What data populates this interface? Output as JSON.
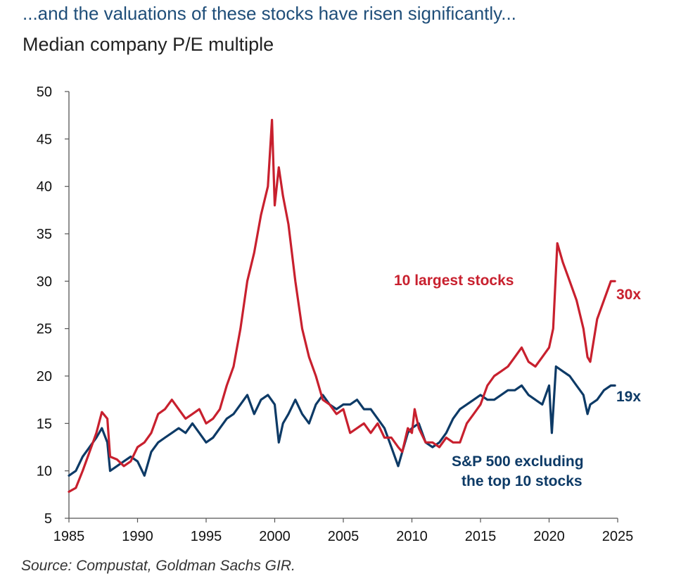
{
  "header": {
    "title": "...and the valuations of these stocks have risen significantly...",
    "subtitle": "Median company P/E multiple"
  },
  "footer": {
    "source": "Source: Compustat, Goldman Sachs GIR."
  },
  "colors": {
    "top10": "#c8202e",
    "rest": "#0d3a66",
    "axis": "#555555"
  },
  "chart_data": {
    "type": "line",
    "title": "Median company P/E multiple",
    "xlabel": "",
    "ylabel": "",
    "xlim": [
      1985,
      2025
    ],
    "ylim": [
      5,
      50
    ],
    "xticks": [
      1985,
      1990,
      1995,
      2000,
      2005,
      2010,
      2015,
      2020,
      2025
    ],
    "yticks": [
      5,
      10,
      15,
      20,
      25,
      30,
      35,
      40,
      45,
      50
    ],
    "grid": false,
    "legend": "none",
    "annotations": [
      {
        "text": "10 largest stocks",
        "series": "top10"
      },
      {
        "text": "30x",
        "series": "top10"
      },
      {
        "text": "19x",
        "series": "rest"
      },
      {
        "text": "S&P 500 excluding",
        "series": "rest"
      },
      {
        "text": "the top 10 stocks",
        "series": "rest"
      }
    ],
    "series": [
      {
        "id": "top10",
        "x": [
          1985.0,
          1985.5,
          1986.0,
          1986.5,
          1987.0,
          1987.4,
          1987.8,
          1988.0,
          1988.5,
          1989.0,
          1989.5,
          1990.0,
          1990.5,
          1991.0,
          1991.5,
          1992.0,
          1992.5,
          1993.0,
          1993.5,
          1994.0,
          1994.5,
          1995.0,
          1995.5,
          1996.0,
          1996.5,
          1997.0,
          1997.5,
          1998.0,
          1998.5,
          1999.0,
          1999.5,
          1999.8,
          2000.0,
          2000.3,
          2000.6,
          2001.0,
          2001.5,
          2002.0,
          2002.5,
          2003.0,
          2003.5,
          2004.0,
          2004.5,
          2005.0,
          2005.5,
          2006.0,
          2006.5,
          2007.0,
          2007.5,
          2008.0,
          2008.5,
          2009.0,
          2009.3,
          2009.7,
          2010.0,
          2010.2,
          2010.5,
          2011.0,
          2011.5,
          2012.0,
          2012.5,
          2013.0,
          2013.5,
          2014.0,
          2014.5,
          2015.0,
          2015.5,
          2016.0,
          2016.5,
          2017.0,
          2017.5,
          2018.0,
          2018.5,
          2019.0,
          2019.5,
          2020.0,
          2020.3,
          2020.6,
          2021.0,
          2021.5,
          2022.0,
          2022.5,
          2022.8,
          2023.0,
          2023.5,
          2024.0,
          2024.5,
          2024.8
        ],
        "y": [
          7.8,
          8.2,
          10.0,
          12.0,
          14.0,
          16.2,
          15.5,
          11.5,
          11.2,
          10.5,
          11.0,
          12.5,
          13.0,
          14.0,
          16.0,
          16.5,
          17.5,
          16.5,
          15.5,
          16.0,
          16.5,
          15.0,
          15.5,
          16.5,
          19.0,
          21.0,
          25.0,
          30.0,
          33.0,
          37.0,
          40.0,
          47.0,
          38.0,
          42.0,
          39.0,
          36.0,
          30.0,
          25.0,
          22.0,
          20.0,
          17.5,
          17.0,
          16.0,
          16.5,
          14.0,
          14.5,
          15.0,
          14.0,
          15.0,
          13.5,
          13.5,
          12.5,
          12.0,
          14.5,
          14.0,
          16.5,
          14.5,
          13.0,
          13.0,
          12.5,
          13.5,
          13.0,
          13.0,
          15.0,
          16.0,
          17.0,
          19.0,
          20.0,
          20.5,
          21.0,
          22.0,
          23.0,
          21.5,
          21.0,
          22.0,
          23.0,
          25.0,
          34.0,
          32.0,
          30.0,
          28.0,
          25.0,
          22.0,
          21.5,
          26.0,
          28.0,
          30.0,
          30.0
        ]
      },
      {
        "id": "rest",
        "x": [
          1985.0,
          1985.5,
          1986.0,
          1986.5,
          1987.0,
          1987.4,
          1987.8,
          1988.0,
          1988.5,
          1989.0,
          1989.5,
          1990.0,
          1990.5,
          1991.0,
          1991.5,
          1992.0,
          1992.5,
          1993.0,
          1993.5,
          1994.0,
          1994.5,
          1995.0,
          1995.5,
          1996.0,
          1996.5,
          1997.0,
          1997.5,
          1998.0,
          1998.5,
          1999.0,
          1999.5,
          2000.0,
          2000.3,
          2000.6,
          2001.0,
          2001.5,
          2002.0,
          2002.5,
          2003.0,
          2003.5,
          2004.0,
          2004.5,
          2005.0,
          2005.5,
          2006.0,
          2006.5,
          2007.0,
          2007.5,
          2008.0,
          2008.5,
          2009.0,
          2009.3,
          2009.7,
          2010.0,
          2010.5,
          2011.0,
          2011.5,
          2012.0,
          2012.5,
          2013.0,
          2013.5,
          2014.0,
          2014.5,
          2015.0,
          2015.5,
          2016.0,
          2016.5,
          2017.0,
          2017.5,
          2018.0,
          2018.5,
          2019.0,
          2019.5,
          2020.0,
          2020.2,
          2020.5,
          2021.0,
          2021.5,
          2022.0,
          2022.5,
          2022.8,
          2023.0,
          2023.5,
          2024.0,
          2024.5,
          2024.8
        ],
        "y": [
          9.5,
          10.0,
          11.5,
          12.5,
          13.5,
          14.5,
          13.0,
          10.0,
          10.5,
          11.0,
          11.5,
          11.0,
          9.5,
          12.0,
          13.0,
          13.5,
          14.0,
          14.5,
          14.0,
          15.0,
          14.0,
          13.0,
          13.5,
          14.5,
          15.5,
          16.0,
          17.0,
          18.0,
          16.0,
          17.5,
          18.0,
          17.0,
          13.0,
          15.0,
          16.0,
          17.5,
          16.0,
          15.0,
          17.0,
          18.0,
          17.0,
          16.5,
          17.0,
          17.0,
          17.5,
          16.5,
          16.5,
          15.5,
          14.5,
          12.5,
          10.5,
          12.0,
          14.0,
          14.5,
          15.0,
          13.0,
          12.5,
          13.0,
          14.0,
          15.5,
          16.5,
          17.0,
          17.5,
          18.0,
          17.5,
          17.5,
          18.0,
          18.5,
          18.5,
          19.0,
          18.0,
          17.5,
          17.0,
          19.0,
          14.0,
          21.0,
          20.5,
          20.0,
          19.0,
          18.0,
          16.0,
          17.0,
          17.5,
          18.5,
          19.0,
          19.0
        ]
      }
    ]
  }
}
